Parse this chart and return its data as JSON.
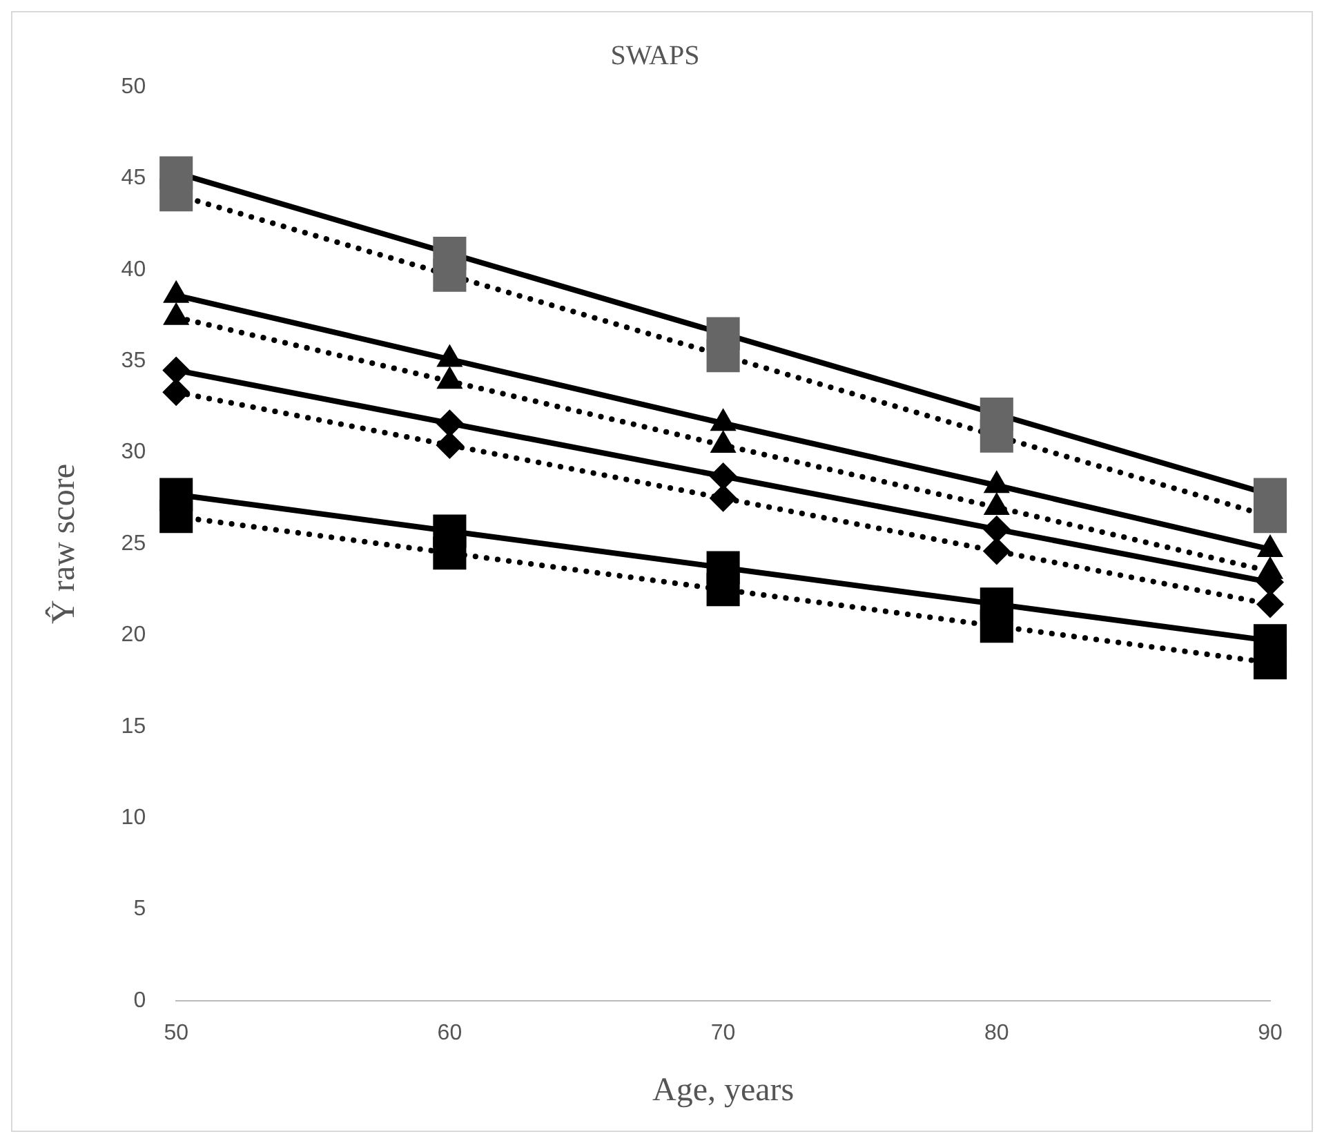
{
  "chart_data": {
    "type": "line",
    "title": "SWAPS",
    "xlabel": "Age, years",
    "ylabel": "Ŷ raw score",
    "categories": [
      "50",
      "60",
      "70",
      "80",
      "90"
    ],
    "ylim": [
      0,
      50
    ],
    "yticks": [
      0,
      5,
      10,
      15,
      20,
      25,
      30,
      35,
      40,
      45,
      50
    ],
    "grid": false,
    "legend": false,
    "series": [
      {
        "color": "#666666",
        "marker": "square",
        "line_style": "solid",
        "values": [
          45.3,
          40.9,
          36.5,
          32.1,
          27.7
        ]
      },
      {
        "color": "#666666",
        "marker": "square",
        "line_style": "dotted",
        "values": [
          44.1,
          39.7,
          35.3,
          30.9,
          26.5
        ]
      },
      {
        "color": "#000000",
        "marker": "triangle",
        "line_style": "solid",
        "values": [
          38.6,
          35.1,
          31.6,
          28.2,
          24.7
        ]
      },
      {
        "color": "#000000",
        "marker": "triangle",
        "line_style": "dotted",
        "values": [
          37.4,
          33.9,
          30.4,
          27.0,
          23.5
        ]
      },
      {
        "color": "#000000",
        "marker": "diamond",
        "line_style": "solid",
        "values": [
          34.5,
          31.6,
          28.7,
          25.8,
          22.9
        ]
      },
      {
        "color": "#000000",
        "marker": "diamond",
        "line_style": "dotted",
        "values": [
          33.3,
          30.4,
          27.5,
          24.6,
          21.7
        ]
      },
      {
        "color": "#000000",
        "marker": "square",
        "line_style": "solid",
        "values": [
          27.7,
          25.7,
          23.7,
          21.7,
          19.7
        ]
      },
      {
        "color": "#000000",
        "marker": "square",
        "line_style": "dotted",
        "values": [
          26.5,
          24.5,
          22.5,
          20.5,
          18.5
        ]
      }
    ]
  }
}
